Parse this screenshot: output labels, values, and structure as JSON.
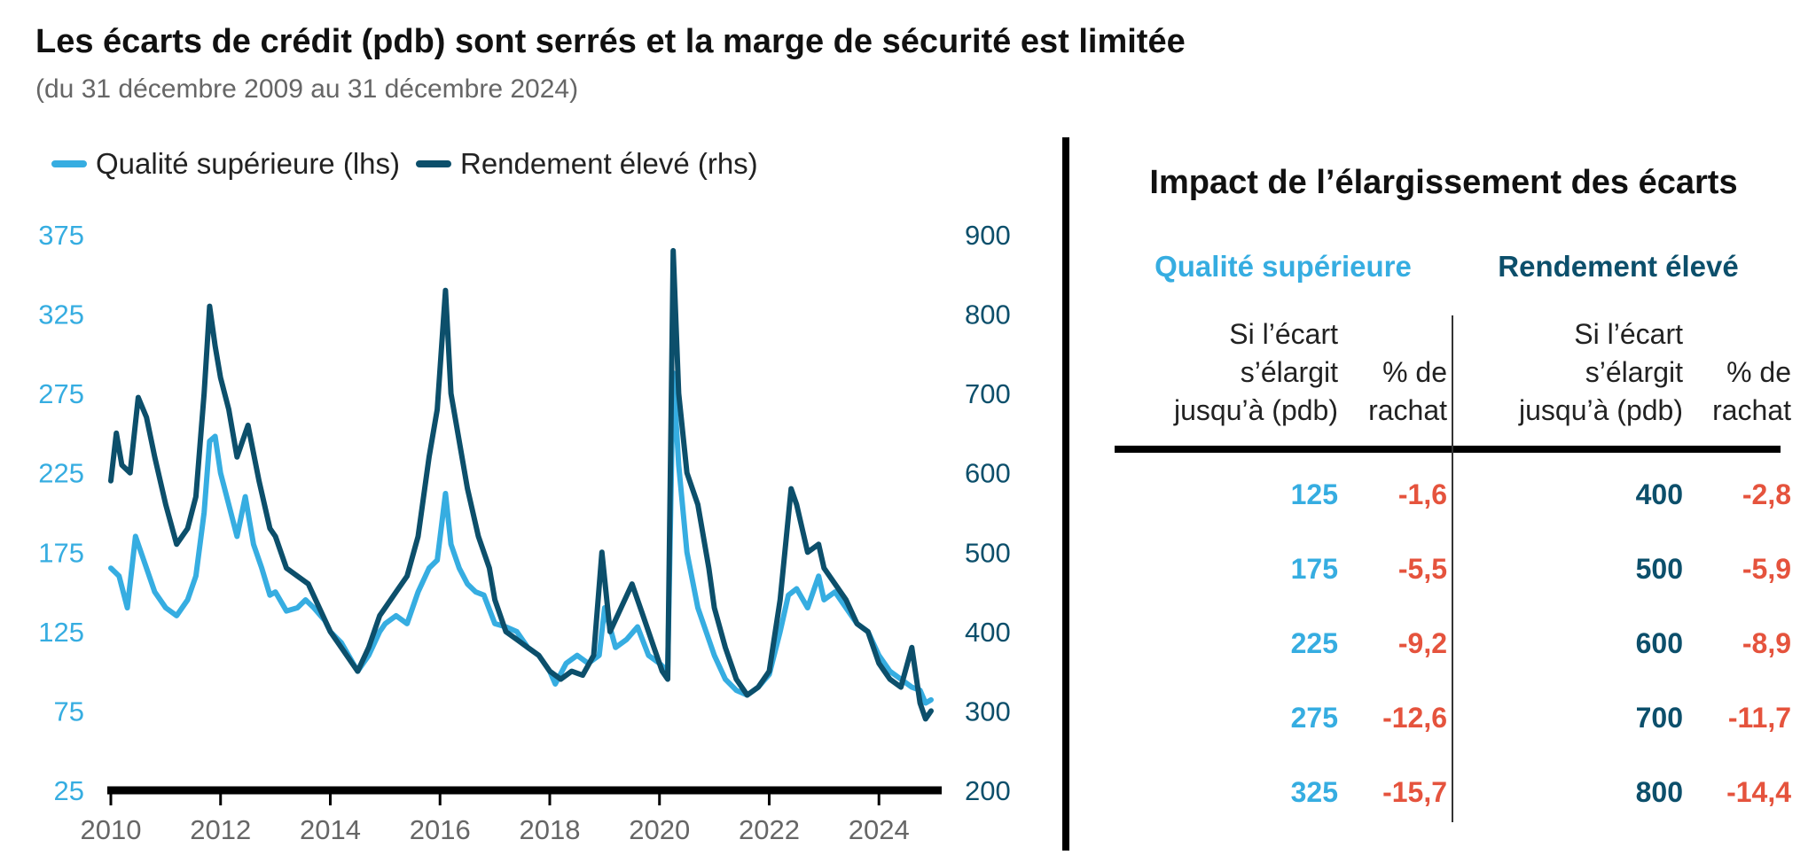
{
  "title": "Les écarts de crédit (pdb) sont serrés et la marge de sécurité est limitée",
  "subtitle": "(du 31 décembre 2009 au 31 décembre 2024)",
  "colors": {
    "ig": "#36ADE1",
    "hy": "#0C4F6B",
    "neg": "#E5533D",
    "axis": "#000000",
    "text": "#222222"
  },
  "chart_data": {
    "type": "line",
    "title": "",
    "legend_position": "top-left",
    "x_range": [
      2010,
      2024.95
    ],
    "x_ticks": [
      2010,
      2012,
      2014,
      2016,
      2018,
      2020,
      2022,
      2024
    ],
    "x_tick_labels": [
      "2010",
      "2012",
      "2014",
      "2016",
      "2018",
      "2020",
      "2022",
      "2024"
    ],
    "y_left": {
      "range": [
        25,
        375
      ],
      "ticks": [
        375,
        325,
        275,
        225,
        175,
        125,
        75,
        25
      ],
      "tick_labels": [
        "375",
        "325",
        "275",
        "225",
        "175",
        "125",
        "75",
        "25"
      ]
    },
    "y_right": {
      "range": [
        200,
        900
      ],
      "ticks": [
        900,
        800,
        700,
        600,
        500,
        400,
        300,
        200
      ],
      "tick_labels": [
        "900",
        "800",
        "700",
        "600",
        "500",
        "400",
        "300",
        "200"
      ]
    },
    "series": [
      {
        "name": "Qualité supérieure (lhs)",
        "axis": "left",
        "points": [
          [
            2010.0,
            165
          ],
          [
            2010.15,
            160
          ],
          [
            2010.3,
            140
          ],
          [
            2010.45,
            185
          ],
          [
            2010.6,
            170
          ],
          [
            2010.8,
            150
          ],
          [
            2011.0,
            140
          ],
          [
            2011.2,
            135
          ],
          [
            2011.4,
            145
          ],
          [
            2011.55,
            160
          ],
          [
            2011.7,
            200
          ],
          [
            2011.8,
            245
          ],
          [
            2011.9,
            248
          ],
          [
            2012.0,
            225
          ],
          [
            2012.15,
            205
          ],
          [
            2012.3,
            185
          ],
          [
            2012.45,
            210
          ],
          [
            2012.6,
            180
          ],
          [
            2012.75,
            165
          ],
          [
            2012.9,
            148
          ],
          [
            2013.0,
            150
          ],
          [
            2013.2,
            138
          ],
          [
            2013.4,
            140
          ],
          [
            2013.55,
            145
          ],
          [
            2013.7,
            140
          ],
          [
            2013.9,
            132
          ],
          [
            2014.0,
            125
          ],
          [
            2014.2,
            118
          ],
          [
            2014.4,
            106
          ],
          [
            2014.5,
            100
          ],
          [
            2014.7,
            110
          ],
          [
            2014.9,
            125
          ],
          [
            2015.0,
            130
          ],
          [
            2015.2,
            135
          ],
          [
            2015.4,
            130
          ],
          [
            2015.6,
            150
          ],
          [
            2015.8,
            165
          ],
          [
            2015.95,
            170
          ],
          [
            2016.1,
            212
          ],
          [
            2016.2,
            180
          ],
          [
            2016.35,
            165
          ],
          [
            2016.5,
            155
          ],
          [
            2016.65,
            150
          ],
          [
            2016.8,
            148
          ],
          [
            2017.0,
            130
          ],
          [
            2017.2,
            128
          ],
          [
            2017.4,
            125
          ],
          [
            2017.6,
            115
          ],
          [
            2017.8,
            110
          ],
          [
            2018.0,
            100
          ],
          [
            2018.1,
            92
          ],
          [
            2018.3,
            105
          ],
          [
            2018.5,
            110
          ],
          [
            2018.7,
            105
          ],
          [
            2018.9,
            110
          ],
          [
            2019.0,
            140
          ],
          [
            2019.2,
            115
          ],
          [
            2019.4,
            120
          ],
          [
            2019.6,
            128
          ],
          [
            2019.8,
            110
          ],
          [
            2020.0,
            105
          ],
          [
            2020.15,
            100
          ],
          [
            2020.25,
            288
          ],
          [
            2020.35,
            230
          ],
          [
            2020.5,
            175
          ],
          [
            2020.7,
            140
          ],
          [
            2020.9,
            120
          ],
          [
            2021.0,
            110
          ],
          [
            2021.2,
            95
          ],
          [
            2021.4,
            88
          ],
          [
            2021.6,
            85
          ],
          [
            2021.8,
            90
          ],
          [
            2022.0,
            98
          ],
          [
            2022.2,
            125
          ],
          [
            2022.35,
            148
          ],
          [
            2022.5,
            152
          ],
          [
            2022.7,
            140
          ],
          [
            2022.9,
            160
          ],
          [
            2023.0,
            145
          ],
          [
            2023.2,
            150
          ],
          [
            2023.4,
            140
          ],
          [
            2023.6,
            130
          ],
          [
            2023.8,
            125
          ],
          [
            2024.0,
            110
          ],
          [
            2024.2,
            100
          ],
          [
            2024.4,
            95
          ],
          [
            2024.6,
            90
          ],
          [
            2024.75,
            88
          ],
          [
            2024.85,
            80
          ],
          [
            2024.95,
            82
          ]
        ]
      },
      {
        "name": "Rendement élevé (rhs)",
        "axis": "right",
        "points": [
          [
            2010.0,
            590
          ],
          [
            2010.1,
            650
          ],
          [
            2010.2,
            610
          ],
          [
            2010.35,
            600
          ],
          [
            2010.5,
            695
          ],
          [
            2010.65,
            670
          ],
          [
            2010.8,
            620
          ],
          [
            2011.0,
            560
          ],
          [
            2011.2,
            510
          ],
          [
            2011.4,
            530
          ],
          [
            2011.55,
            570
          ],
          [
            2011.7,
            700
          ],
          [
            2011.8,
            810
          ],
          [
            2011.9,
            760
          ],
          [
            2012.0,
            720
          ],
          [
            2012.15,
            680
          ],
          [
            2012.3,
            620
          ],
          [
            2012.5,
            660
          ],
          [
            2012.7,
            590
          ],
          [
            2012.9,
            530
          ],
          [
            2013.0,
            520
          ],
          [
            2013.2,
            480
          ],
          [
            2013.4,
            470
          ],
          [
            2013.6,
            460
          ],
          [
            2013.8,
            430
          ],
          [
            2014.0,
            400
          ],
          [
            2014.2,
            380
          ],
          [
            2014.4,
            360
          ],
          [
            2014.5,
            350
          ],
          [
            2014.7,
            380
          ],
          [
            2014.9,
            420
          ],
          [
            2015.0,
            430
          ],
          [
            2015.2,
            450
          ],
          [
            2015.4,
            470
          ],
          [
            2015.6,
            520
          ],
          [
            2015.8,
            620
          ],
          [
            2015.95,
            680
          ],
          [
            2016.1,
            830
          ],
          [
            2016.2,
            700
          ],
          [
            2016.35,
            640
          ],
          [
            2016.5,
            580
          ],
          [
            2016.7,
            520
          ],
          [
            2016.9,
            480
          ],
          [
            2017.0,
            440
          ],
          [
            2017.2,
            400
          ],
          [
            2017.4,
            390
          ],
          [
            2017.6,
            380
          ],
          [
            2017.8,
            370
          ],
          [
            2018.0,
            350
          ],
          [
            2018.2,
            340
          ],
          [
            2018.4,
            350
          ],
          [
            2018.6,
            345
          ],
          [
            2018.8,
            370
          ],
          [
            2018.95,
            500
          ],
          [
            2019.1,
            400
          ],
          [
            2019.3,
            430
          ],
          [
            2019.5,
            460
          ],
          [
            2019.7,
            420
          ],
          [
            2019.9,
            380
          ],
          [
            2020.05,
            350
          ],
          [
            2020.15,
            340
          ],
          [
            2020.25,
            880
          ],
          [
            2020.35,
            700
          ],
          [
            2020.5,
            600
          ],
          [
            2020.7,
            560
          ],
          [
            2020.9,
            480
          ],
          [
            2021.0,
            430
          ],
          [
            2021.2,
            380
          ],
          [
            2021.4,
            340
          ],
          [
            2021.6,
            320
          ],
          [
            2021.8,
            330
          ],
          [
            2022.0,
            350
          ],
          [
            2022.2,
            440
          ],
          [
            2022.4,
            580
          ],
          [
            2022.5,
            560
          ],
          [
            2022.7,
            500
          ],
          [
            2022.9,
            510
          ],
          [
            2023.0,
            480
          ],
          [
            2023.2,
            460
          ],
          [
            2023.4,
            440
          ],
          [
            2023.6,
            410
          ],
          [
            2023.8,
            400
          ],
          [
            2024.0,
            360
          ],
          [
            2024.2,
            340
          ],
          [
            2024.4,
            330
          ],
          [
            2024.6,
            380
          ],
          [
            2024.75,
            310
          ],
          [
            2024.85,
            290
          ],
          [
            2024.95,
            300
          ]
        ]
      }
    ]
  },
  "legend": {
    "ig": "Qualité supérieure (lhs)",
    "hy": "Rendement élevé (rhs)"
  },
  "table": {
    "title": "Impact de l’élargissement des écarts",
    "groups": [
      "Qualité supérieure",
      "Rendement élevé"
    ],
    "col_spread_lines": [
      "Si l’écart",
      "s’élargit",
      "jusqu’à (pdb)"
    ],
    "col_pct_lines": [
      "% de",
      "rachat"
    ],
    "ig_rows": [
      {
        "spread": "125",
        "pct": "-1,6"
      },
      {
        "spread": "175",
        "pct": "-5,5"
      },
      {
        "spread": "225",
        "pct": "-9,2"
      },
      {
        "spread": "275",
        "pct": "-12,6"
      },
      {
        "spread": "325",
        "pct": "-15,7"
      }
    ],
    "hy_rows": [
      {
        "spread": "400",
        "pct": "-2,8"
      },
      {
        "spread": "500",
        "pct": "-5,9"
      },
      {
        "spread": "600",
        "pct": "-8,9"
      },
      {
        "spread": "700",
        "pct": "-11,7"
      },
      {
        "spread": "800",
        "pct": "-14,4"
      }
    ]
  }
}
